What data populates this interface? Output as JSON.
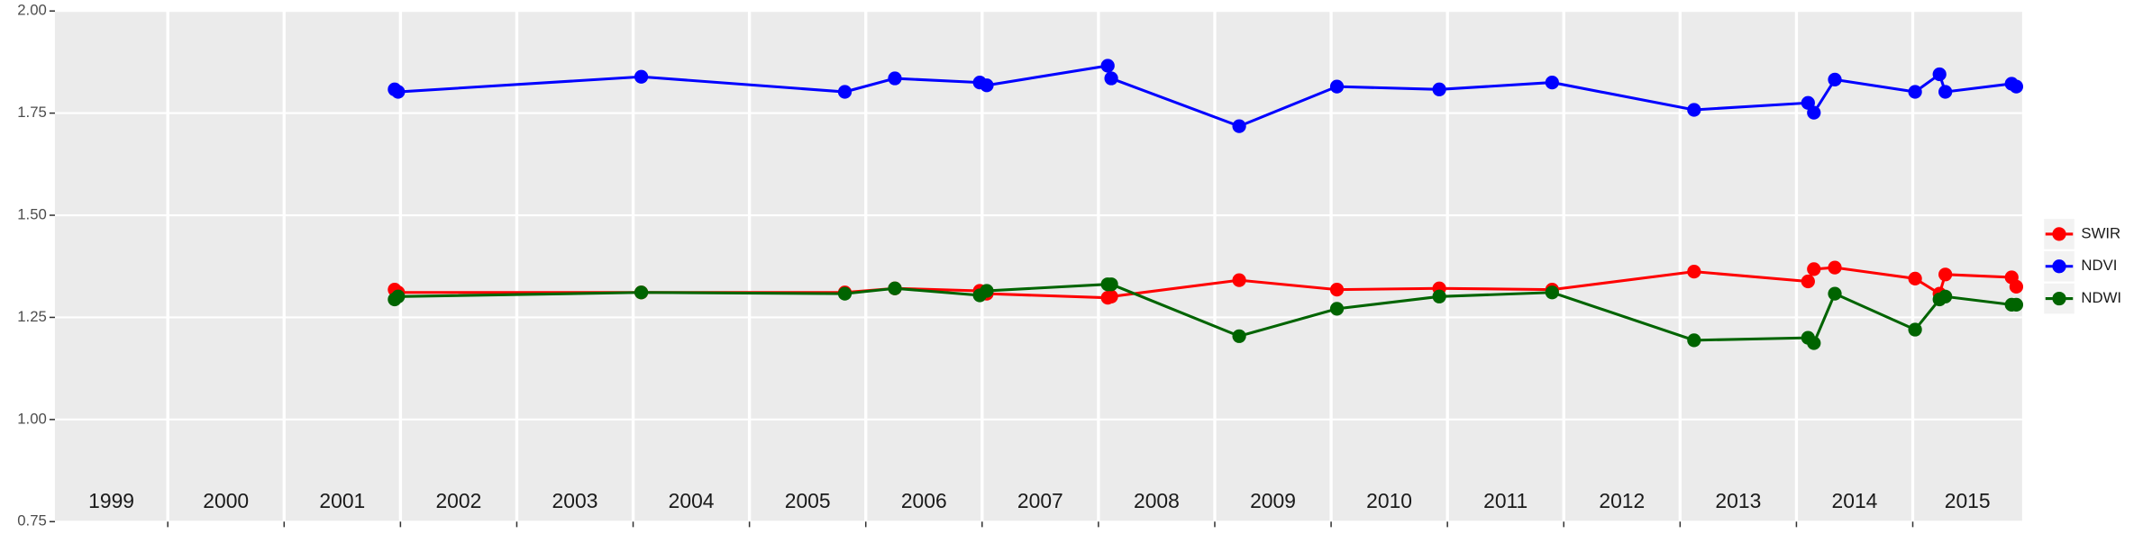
{
  "chart_data": {
    "type": "line",
    "x": [
      2001.95,
      2001.98,
      2004.07,
      2005.82,
      2006.25,
      2006.98,
      2007.04,
      2008.08,
      2008.11,
      2009.21,
      2010.05,
      2010.93,
      2011.9,
      2013.12,
      2014.1,
      2014.15,
      2014.33,
      2015.02,
      2015.23,
      2015.28,
      2015.85,
      2015.89
    ],
    "series": [
      {
        "name": "SWIR",
        "color": "#ff0000",
        "values": [
          1.318,
          1.311,
          1.311,
          1.311,
          1.321,
          1.315,
          1.308,
          1.298,
          1.301,
          1.341,
          1.318,
          1.321,
          1.318,
          1.362,
          1.338,
          1.368,
          1.372,
          1.345,
          1.308,
          1.355,
          1.348,
          1.325
        ]
      },
      {
        "name": "NDVI",
        "color": "#0000ff",
        "values": [
          1.808,
          1.802,
          1.839,
          1.802,
          1.835,
          1.825,
          1.818,
          1.866,
          1.835,
          1.718,
          1.815,
          1.808,
          1.825,
          1.758,
          1.775,
          1.751,
          1.832,
          1.802,
          1.845,
          1.802,
          1.822,
          1.815
        ]
      },
      {
        "name": "NDWI",
        "color": "#006400",
        "values": [
          1.294,
          1.301,
          1.311,
          1.308,
          1.321,
          1.304,
          1.315,
          1.331,
          1.331,
          1.204,
          1.271,
          1.301,
          1.311,
          1.194,
          1.2,
          1.187,
          1.308,
          1.22,
          1.294,
          1.301,
          1.281,
          1.281
        ]
      }
    ],
    "xlim": [
      1999.03,
      2015.94
    ],
    "xticks": [
      2000,
      2001,
      2002,
      2003,
      2004,
      2005,
      2006,
      2007,
      2008,
      2009,
      2010,
      2011,
      2012,
      2013,
      2014,
      2015
    ],
    "year_labels": [
      "1999",
      "2000",
      "2001",
      "2002",
      "2003",
      "2004",
      "2005",
      "2006",
      "2007",
      "2008",
      "2009",
      "2010",
      "2011",
      "2012",
      "2013",
      "2014",
      "2015"
    ],
    "ylim": [
      0.75,
      2.0
    ],
    "yticks": [
      {
        "value": 0.75,
        "label": "0.75"
      },
      {
        "value": 1.0,
        "label": "1.00"
      },
      {
        "value": 1.25,
        "label": "1.25"
      },
      {
        "value": 1.5,
        "label": "1.50"
      },
      {
        "value": 1.75,
        "label": "1.75"
      },
      {
        "value": 2.0,
        "label": "2.00"
      }
    ],
    "grid": true,
    "legend": "right"
  }
}
